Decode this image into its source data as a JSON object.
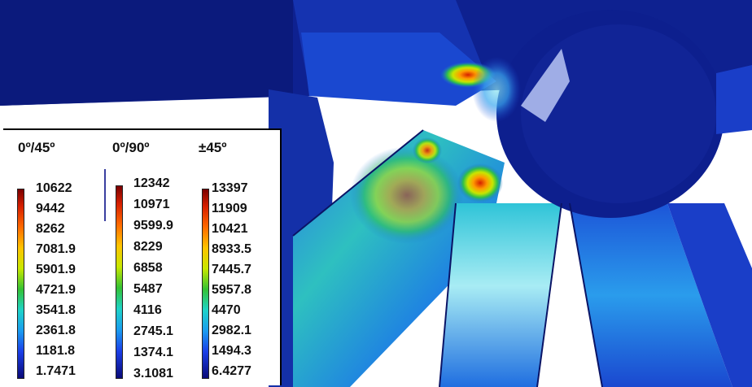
{
  "legend": {
    "groups": [
      {
        "title": "0º/45º",
        "ticks": [
          "10622",
          "9442",
          "8262",
          "7081.9",
          "5901.9",
          "4721.9",
          "3541.8",
          "2361.8",
          "1181.8",
          "1.7471"
        ]
      },
      {
        "title": "0º/90º",
        "ticks": [
          "12342",
          "10971",
          "9599.9",
          "8229",
          "6858",
          "5487",
          "4116",
          "2745.1",
          "1374.1",
          "3.1081"
        ]
      },
      {
        "title": "±45º",
        "ticks": [
          "13397",
          "11909",
          "10421",
          "8933.5",
          "7445.7",
          "5957.8",
          "4470",
          "2982.1",
          "1494.3",
          "6.4277"
        ]
      }
    ],
    "colormap": "jet"
  },
  "scene": {
    "subject": "stress-contour-tubular-joint",
    "colors": {
      "background": "#ffffff",
      "low": "#0d1a8c",
      "high": "#d61f00"
    }
  }
}
